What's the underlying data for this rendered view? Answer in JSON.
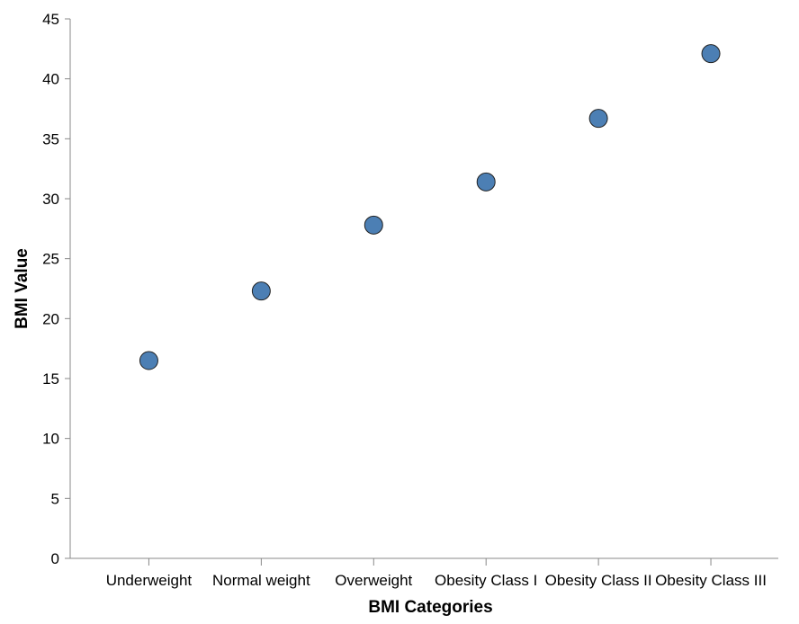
{
  "chart_data": {
    "type": "scatter",
    "categories": [
      "Underweight",
      "Normal weight",
      "Overweight",
      "Obesity Class I",
      "Obesity Class II",
      "Obesity Class III"
    ],
    "values": [
      16.5,
      22.3,
      27.8,
      31.4,
      36.7,
      42.1
    ],
    "xlabel": "BMI Categories",
    "ylabel": "BMI Value",
    "ylim": [
      0,
      45
    ],
    "yticks": [
      0,
      5,
      10,
      15,
      20,
      25,
      30,
      35,
      40,
      45
    ],
    "grid": false,
    "legend": "none",
    "point_color": "#4c7fb4"
  }
}
